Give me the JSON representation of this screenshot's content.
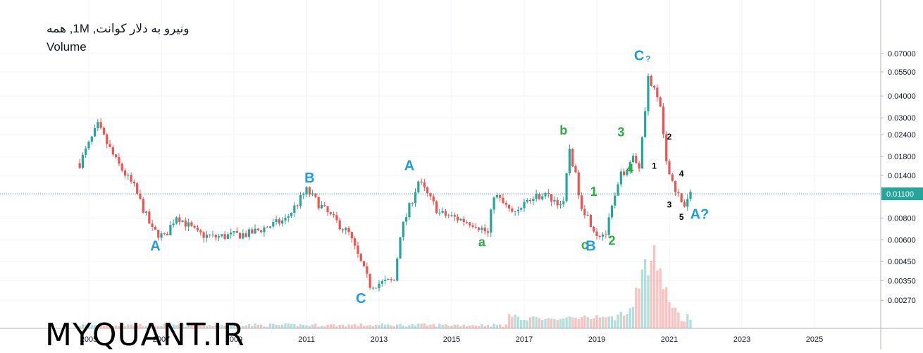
{
  "header": {
    "symbol_line": "ونیرو به دلار کوانت, 1M, همه",
    "volume_label": "Volume"
  },
  "watermark": "MYQUANT.IR",
  "chart_data": {
    "type": "candlestick",
    "title": "ونیرو به دلار کوانت, 1M, همه",
    "interval": "1M",
    "y_scale": "log",
    "ylim": [
      0.0022,
      0.07
    ],
    "xlim": [
      "2004-01",
      "2026-06"
    ],
    "y_ticks": [
      "0.07000",
      "0.05500",
      "0.04000",
      "0.03000",
      "0.02400",
      "0.01800",
      "0.01400",
      "0.01100",
      "0.00800",
      "0.00600",
      "0.00450",
      "0.00350",
      "0.00270"
    ],
    "x_ticks": [
      "2005",
      "2007",
      "2009",
      "2011",
      "2013",
      "2015",
      "2017",
      "2019",
      "2021",
      "2023",
      "2025"
    ],
    "last_price": "0.01100",
    "grid": true,
    "colors": {
      "up": "#26a69a",
      "down": "#ef5350",
      "price_line": "#26a69a"
    },
    "series": [
      {
        "name": "price",
        "approx_path": [
          {
            "x": "2004-10",
            "y": 0.0165
          },
          {
            "x": "2005-04",
            "y": 0.027
          },
          {
            "x": "2005-10",
            "y": 0.017
          },
          {
            "x": "2006-04",
            "y": 0.012
          },
          {
            "x": "2006-10",
            "y": 0.0068
          },
          {
            "x": "2007-02",
            "y": 0.0062
          },
          {
            "x": "2007-06",
            "y": 0.0083
          },
          {
            "x": "2008-01",
            "y": 0.0065
          },
          {
            "x": "2008-06",
            "y": 0.0062
          },
          {
            "x": "2009-06",
            "y": 0.0065
          },
          {
            "x": "2010-06",
            "y": 0.0078
          },
          {
            "x": "2011-01",
            "y": 0.0115
          },
          {
            "x": "2011-08",
            "y": 0.0085
          },
          {
            "x": "2012-03",
            "y": 0.0065
          },
          {
            "x": "2012-10",
            "y": 0.0033
          },
          {
            "x": "2013-06",
            "y": 0.0035
          },
          {
            "x": "2013-08",
            "y": 0.0065
          },
          {
            "x": "2014-02",
            "y": 0.013
          },
          {
            "x": "2014-09",
            "y": 0.0085
          },
          {
            "x": "2015-09",
            "y": 0.0074
          },
          {
            "x": "2016-01",
            "y": 0.0065
          },
          {
            "x": "2016-03",
            "y": 0.011
          },
          {
            "x": "2016-09",
            "y": 0.0085
          },
          {
            "x": "2017-01",
            "y": 0.0098
          },
          {
            "x": "2017-07",
            "y": 0.011
          },
          {
            "x": "2018-02",
            "y": 0.0095
          },
          {
            "x": "2018-04",
            "y": 0.02
          },
          {
            "x": "2018-08",
            "y": 0.0095
          },
          {
            "x": "2019-01",
            "y": 0.0065
          },
          {
            "x": "2019-04",
            "y": 0.0065
          },
          {
            "x": "2019-06",
            "y": 0.009
          },
          {
            "x": "2019-09",
            "y": 0.014
          },
          {
            "x": "2020-01",
            "y": 0.018
          },
          {
            "x": "2020-03",
            "y": 0.016
          },
          {
            "x": "2020-06",
            "y": 0.051
          },
          {
            "x": "2020-10",
            "y": 0.035
          },
          {
            "x": "2020-12",
            "y": 0.016
          },
          {
            "x": "2021-03",
            "y": 0.0118
          },
          {
            "x": "2021-06",
            "y": 0.0092
          },
          {
            "x": "2021-08",
            "y": 0.011
          }
        ]
      }
    ],
    "annotations": [
      {
        "text": "A",
        "x": "2006-11",
        "y": 0.0052,
        "color": "#1e9de0"
      },
      {
        "text": "B",
        "x": "2011-02",
        "y": 0.0128,
        "color": "#1e9de0"
      },
      {
        "text": "C",
        "x": "2012-07",
        "y": 0.0026,
        "color": "#1e9de0"
      },
      {
        "text": "A",
        "x": "2013-11",
        "y": 0.015,
        "color": "#1e9de0"
      },
      {
        "text": "a",
        "x": "2015-11",
        "y": 0.0055,
        "color": "#27ae3c"
      },
      {
        "text": "b",
        "x": "2018-02",
        "y": 0.024,
        "color": "#27ae3c"
      },
      {
        "text": "1",
        "x": "2018-12",
        "y": 0.0107,
        "color": "#27ae3c"
      },
      {
        "text": "c",
        "x": "2018-09",
        "y": 0.0053,
        "color": "#27ae3c"
      },
      {
        "text": "B",
        "x": "2018-11",
        "y": 0.0052,
        "color": "#1e9de0"
      },
      {
        "text": "2",
        "x": "2019-06",
        "y": 0.0056,
        "color": "#27ae3c"
      },
      {
        "text": "3",
        "x": "2019-09",
        "y": 0.0235,
        "color": "#27ae3c"
      },
      {
        "text": "4",
        "x": "2019-12",
        "y": 0.0145,
        "color": "#27ae3c"
      },
      {
        "text": "C",
        "x": "2020-03",
        "y": 0.064,
        "color": "#1e9de0"
      },
      {
        "text": "?",
        "x": "2020-06",
        "y": 0.063,
        "color": "#1e9de0"
      },
      {
        "text": "2",
        "x": "2021-01",
        "y": 0.0225,
        "color": "#000000"
      },
      {
        "text": "1",
        "x": "2020-08",
        "y": 0.0153,
        "color": "#000000"
      },
      {
        "text": "4",
        "x": "2021-05",
        "y": 0.0138,
        "color": "#000000"
      },
      {
        "text": "3",
        "x": "2021-01",
        "y": 0.0092,
        "color": "#000000"
      },
      {
        "text": "5",
        "x": "2021-05",
        "y": 0.0078,
        "color": "#000000"
      },
      {
        "text": "A?",
        "x": "2021-11",
        "y": 0.0079,
        "color": "#1e9de0"
      }
    ]
  }
}
